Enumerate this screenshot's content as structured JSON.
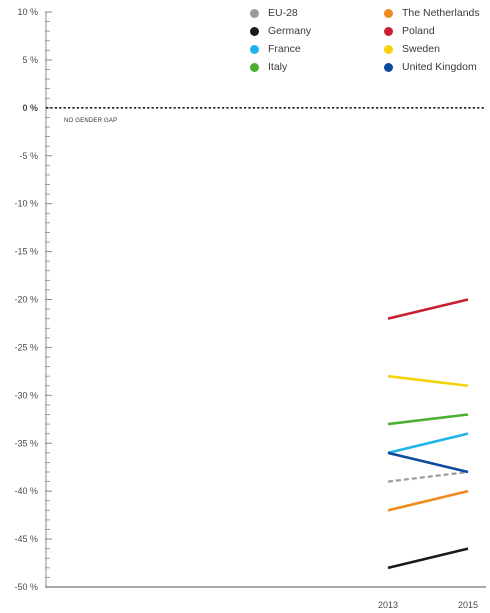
{
  "chart_data": {
    "type": "line",
    "title": "",
    "xlabel": "",
    "ylabel": "",
    "x": [
      "2013",
      "2015"
    ],
    "ylim": [
      -50,
      10
    ],
    "yticks": [
      10,
      5,
      0,
      -5,
      -10,
      -15,
      -20,
      -25,
      -30,
      -35,
      -40,
      -45,
      -50
    ],
    "ytick_labels": [
      "10 %",
      "5 %",
      "0 %",
      "-5 %",
      "-10 %",
      "-15 %",
      "-20 %",
      "-25 %",
      "-30 %",
      "-35 %",
      "-40 %",
      "-45 %",
      "-50 %"
    ],
    "reference_line": {
      "value": 0,
      "label": "NO GENDER GAP"
    },
    "legend_position": "top-right",
    "series": [
      {
        "name": "EU-28",
        "color": "#9b9b9b",
        "dashed": true,
        "values": [
          -39,
          -38
        ]
      },
      {
        "name": "Germany",
        "color": "#1a1a1a",
        "values": [
          -48,
          -46
        ]
      },
      {
        "name": "France",
        "color": "#1eb4ea",
        "values": [
          -36,
          -34
        ]
      },
      {
        "name": "Italy",
        "color": "#4caf32",
        "values": [
          -33,
          -32
        ]
      },
      {
        "name": "The Netherlands",
        "color": "#f08a1c",
        "values": [
          -42,
          -40
        ]
      },
      {
        "name": "Poland",
        "color": "#c8202f",
        "values": [
          -22,
          -20
        ]
      },
      {
        "name": "Sweden",
        "color": "#f5d20a",
        "values": [
          -28,
          -29
        ]
      },
      {
        "name": "United Kingdom",
        "color": "#0b4a9c",
        "values": [
          -36,
          -38
        ]
      }
    ]
  }
}
